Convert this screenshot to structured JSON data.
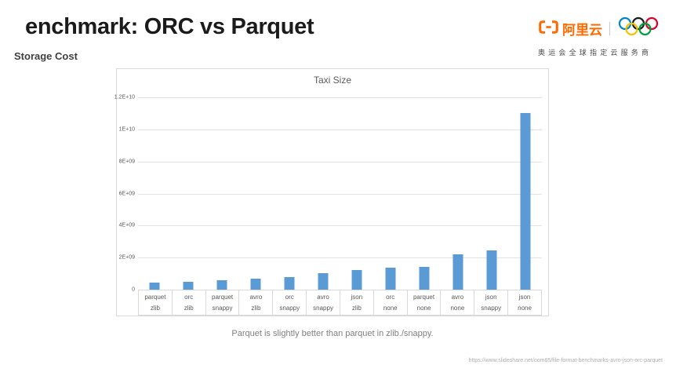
{
  "slide": {
    "title": "enchmark: ORC vs Parquet",
    "subtitle": "Storage Cost",
    "caption": "Parquet is slightly better than parquet in zlib./snappy.",
    "source_url": "https://www.slideshare.net/oom65/file-format-benchmarks-avro-json-orc-parquet"
  },
  "logo": {
    "brand_text": "阿里云",
    "tagline": "奥运会全球指定云服务商",
    "brand_color": "#FF6A00",
    "olympic_ring_colors": [
      "#0085C7",
      "#1A1A1A",
      "#DF0024",
      "#F4C300",
      "#009F3D"
    ]
  },
  "chart_data": {
    "type": "bar",
    "title": "Taxi Size",
    "xlabel": "",
    "ylabel": "",
    "categories": [
      {
        "format": "parquet",
        "codec": "zlib"
      },
      {
        "format": "orc",
        "codec": "zlib"
      },
      {
        "format": "parquet",
        "codec": "snappy"
      },
      {
        "format": "avro",
        "codec": "zlib"
      },
      {
        "format": "orc",
        "codec": "snappy"
      },
      {
        "format": "avro",
        "codec": "snappy"
      },
      {
        "format": "json",
        "codec": "zlib"
      },
      {
        "format": "orc",
        "codec": "none"
      },
      {
        "format": "parquet",
        "codec": "none"
      },
      {
        "format": "avro",
        "codec": "none"
      },
      {
        "format": "json",
        "codec": "snappy"
      },
      {
        "format": "json",
        "codec": "none"
      }
    ],
    "values": [
      430000000.0,
      490000000.0,
      570000000.0,
      690000000.0,
      780000000.0,
      1040000000.0,
      1220000000.0,
      1380000000.0,
      1420000000.0,
      2200000000.0,
      2450000000.0,
      11000000000.0
    ],
    "ylim": [
      0,
      12000000000.0
    ],
    "y_ticks": {
      "values": [
        12000000000.0,
        10000000000.0,
        8000000000.0,
        6000000000.0,
        4000000000.0,
        2000000000.0,
        0
      ],
      "labels": [
        "1.2E+10",
        "1E+10",
        "8E+09",
        "6E+09",
        "4E+09",
        "2E+09",
        "0"
      ]
    },
    "bar_color": "#5B9BD5",
    "grid": true,
    "legend": false
  }
}
